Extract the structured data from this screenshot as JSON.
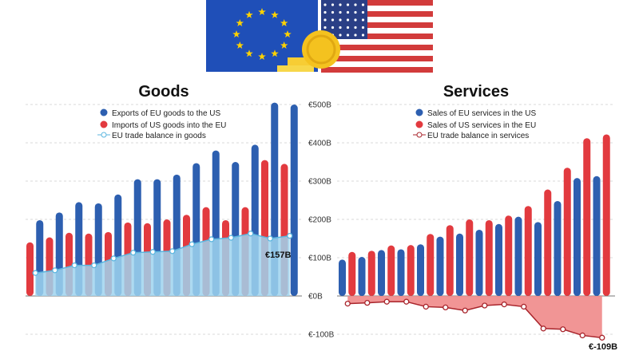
{
  "colors": {
    "exports_blue": "#2d5fb0",
    "imports_red": "#e23a3f",
    "goods_line": "#5bb6df",
    "goods_area": "#9fd4ee",
    "services_line": "#a9252c",
    "services_area": "#f08a8a",
    "eu_flag_blue": "#1f4fb8",
    "eu_star": "#ffd200",
    "us_red": "#d23b3b",
    "us_blue": "#2a3f86",
    "coin": "#f4c21f"
  },
  "y_axis": {
    "ticks": [
      {
        "value": 500,
        "label": "€500B"
      },
      {
        "value": 400,
        "label": "€400B"
      },
      {
        "value": 300,
        "label": "€300B"
      },
      {
        "value": 200,
        "label": "€200B"
      },
      {
        "value": 100,
        "label": "€100B"
      },
      {
        "value": 0,
        "label": "€0B"
      },
      {
        "value": -100,
        "label": "€-100B"
      }
    ]
  },
  "chart_data": [
    {
      "type": "bar",
      "title": "Goods",
      "legend_placement": "top-center",
      "ylim": [
        -100,
        500
      ],
      "grid": true,
      "series": [
        {
          "name": "Exports of EU goods to the US",
          "values": [
            198,
            218,
            245,
            242,
            265,
            305,
            305,
            317,
            347,
            380,
            350,
            395,
            505,
            500
          ]
        },
        {
          "name": "Imports of US goods into the EU",
          "values": [
            140,
            153,
            165,
            163,
            167,
            192,
            190,
            200,
            212,
            232,
            198,
            232,
            355,
            345
          ]
        },
        {
          "name": "EU trade balance in goods",
          "values": [
            60,
            67,
            80,
            80,
            98,
            113,
            115,
            117,
            135,
            148,
            152,
            163,
            150,
            157
          ]
        }
      ],
      "annotations": [
        {
          "text": "€157B"
        }
      ]
    },
    {
      "type": "bar",
      "title": "Services",
      "legend_placement": "top-center",
      "ylim": [
        -100,
        500
      ],
      "grid": true,
      "series": [
        {
          "name": "Sales of EU services in the US",
          "values": [
            95,
            102,
            120,
            122,
            135,
            155,
            163,
            173,
            188,
            207,
            193,
            248,
            308,
            313
          ]
        },
        {
          "name": "Sales of US services in the EU",
          "values": [
            115,
            118,
            132,
            133,
            162,
            185,
            200,
            198,
            210,
            235,
            278,
            335,
            412,
            422
          ]
        },
        {
          "name": "EU trade balance in services",
          "values": [
            -20,
            -18,
            -15,
            -15,
            -28,
            -30,
            -38,
            -25,
            -22,
            -28,
            -85,
            -87,
            -103,
            -109
          ]
        }
      ],
      "annotations": [
        {
          "text": "€-109B"
        }
      ]
    }
  ]
}
